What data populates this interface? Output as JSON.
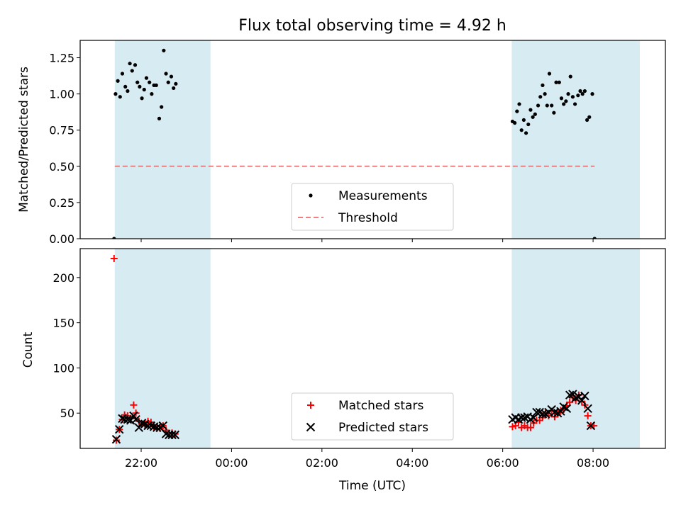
{
  "title": "Flux total observing time = 4.92 h",
  "colors": {
    "shade": "#add8e6",
    "measurement": "#000000",
    "threshold": "#f08080",
    "matched": "#ff0000",
    "predicted": "#000000"
  },
  "chart_data": [
    {
      "type": "scatter",
      "ylabel": "Matched/Predicted stars",
      "ylim": [
        0,
        1.37
      ],
      "yticks": [
        "0.00",
        "0.25",
        "0.50",
        "0.75",
        "1.00",
        "1.25"
      ],
      "xlim_hours": [
        20.65,
        33.6
      ],
      "shaded_intervals": [
        [
          "21:25",
          "23:32"
        ],
        [
          "06:12",
          "09:02"
        ]
      ],
      "series": [
        {
          "name": "Measurements",
          "marker": "dot",
          "points": [
            [
              "21:24",
              0.0
            ],
            [
              "21:26",
              1.0
            ],
            [
              "21:29",
              1.09
            ],
            [
              "21:32",
              0.98
            ],
            [
              "21:35",
              1.14
            ],
            [
              "21:39",
              1.05
            ],
            [
              "21:42",
              1.02
            ],
            [
              "21:45",
              1.21
            ],
            [
              "21:48",
              1.16
            ],
            [
              "21:52",
              1.2
            ],
            [
              "21:55",
              1.08
            ],
            [
              "21:58",
              1.05
            ],
            [
              "22:01",
              0.97
            ],
            [
              "22:04",
              1.03
            ],
            [
              "22:07",
              1.11
            ],
            [
              "22:11",
              1.08
            ],
            [
              "22:14",
              1.0
            ],
            [
              "22:17",
              1.06
            ],
            [
              "22:20",
              1.06
            ],
            [
              "22:24",
              0.83
            ],
            [
              "22:27",
              0.91
            ],
            [
              "22:30",
              1.3
            ],
            [
              "22:33",
              1.14
            ],
            [
              "22:36",
              1.08
            ],
            [
              "22:40",
              1.12
            ],
            [
              "22:43",
              1.04
            ],
            [
              "22:46",
              1.07
            ],
            [
              "06:13",
              0.81
            ],
            [
              "06:16",
              0.8
            ],
            [
              "06:19",
              0.88
            ],
            [
              "06:22",
              0.93
            ],
            [
              "06:25",
              0.75
            ],
            [
              "06:28",
              0.82
            ],
            [
              "06:31",
              0.73
            ],
            [
              "06:34",
              0.79
            ],
            [
              "06:37",
              0.89
            ],
            [
              "06:40",
              0.84
            ],
            [
              "06:43",
              0.86
            ],
            [
              "06:47",
              0.92
            ],
            [
              "06:50",
              0.98
            ],
            [
              "06:53",
              1.06
            ],
            [
              "06:56",
              1.0
            ],
            [
              "06:59",
              0.92
            ],
            [
              "07:02",
              1.14
            ],
            [
              "07:05",
              0.92
            ],
            [
              "07:08",
              0.87
            ],
            [
              "07:11",
              1.08
            ],
            [
              "07:15",
              1.08
            ],
            [
              "07:18",
              0.97
            ],
            [
              "07:21",
              0.93
            ],
            [
              "07:24",
              0.95
            ],
            [
              "07:27",
              1.0
            ],
            [
              "07:30",
              1.12
            ],
            [
              "07:33",
              0.98
            ],
            [
              "07:36",
              0.93
            ],
            [
              "07:40",
              0.99
            ],
            [
              "07:43",
              1.02
            ],
            [
              "07:46",
              1.0
            ],
            [
              "07:49",
              1.02
            ],
            [
              "07:52",
              0.82
            ],
            [
              "07:55",
              0.84
            ],
            [
              "07:59",
              1.0
            ],
            [
              "08:02",
              0.0
            ]
          ]
        },
        {
          "name": "Threshold",
          "marker": "dashed-line",
          "points": [
            [
              "21:25",
              0.5
            ],
            [
              "08:02",
              0.5
            ]
          ]
        }
      ]
    },
    {
      "type": "scatter",
      "xlabel": "Time (UTC)",
      "ylabel": "Count",
      "ylim": [
        11,
        232
      ],
      "yticks": [
        "50",
        "100",
        "150",
        "200"
      ],
      "xticks": [
        "22:00",
        "00:00",
        "02:00",
        "04:00",
        "06:00",
        "08:00"
      ],
      "xlim_hours": [
        20.65,
        33.6
      ],
      "shaded_intervals": [
        [
          "21:25",
          "23:32"
        ],
        [
          "06:12",
          "09:02"
        ]
      ],
      "series": [
        {
          "name": "Matched stars",
          "marker": "plus",
          "points": [
            [
              "21:24",
              221
            ],
            [
              "21:27",
              20
            ],
            [
              "21:31",
              32
            ],
            [
              "21:35",
              43
            ],
            [
              "21:38",
              48
            ],
            [
              "21:42",
              47
            ],
            [
              "21:46",
              44
            ],
            [
              "21:50",
              59
            ],
            [
              "21:53",
              50
            ],
            [
              "21:57",
              41
            ],
            [
              "22:01",
              38
            ],
            [
              "22:05",
              36
            ],
            [
              "22:09",
              41
            ],
            [
              "22:13",
              40
            ],
            [
              "22:17",
              35
            ],
            [
              "22:21",
              33
            ],
            [
              "22:25",
              33
            ],
            [
              "22:29",
              36
            ],
            [
              "22:33",
              31
            ],
            [
              "22:37",
              27
            ],
            [
              "22:41",
              28
            ],
            [
              "22:45",
              27
            ],
            [
              "06:13",
              35
            ],
            [
              "06:17",
              36
            ],
            [
              "06:21",
              40
            ],
            [
              "06:25",
              34
            ],
            [
              "06:29",
              36
            ],
            [
              "06:33",
              34
            ],
            [
              "06:37",
              34
            ],
            [
              "06:41",
              39
            ],
            [
              "06:45",
              42
            ],
            [
              "06:49",
              42
            ],
            [
              "06:53",
              45
            ],
            [
              "06:57",
              50
            ],
            [
              "07:01",
              47
            ],
            [
              "07:05",
              52
            ],
            [
              "07:09",
              46
            ],
            [
              "07:13",
              49
            ],
            [
              "07:17",
              53
            ],
            [
              "07:21",
              54
            ],
            [
              "07:25",
              58
            ],
            [
              "07:29",
              62
            ],
            [
              "07:33",
              67
            ],
            [
              "07:37",
              64
            ],
            [
              "07:41",
              70
            ],
            [
              "07:45",
              63
            ],
            [
              "07:49",
              59
            ],
            [
              "07:53",
              47
            ],
            [
              "07:57",
              36
            ],
            [
              "08:01",
              36
            ]
          ]
        },
        {
          "name": "Predicted stars",
          "marker": "x",
          "points": [
            [
              "21:27",
              21
            ],
            [
              "21:31",
              32
            ],
            [
              "21:35",
              44
            ],
            [
              "21:38",
              43
            ],
            [
              "21:42",
              43
            ],
            [
              "21:46",
              42
            ],
            [
              "21:50",
              47
            ],
            [
              "21:53",
              43
            ],
            [
              "21:57",
              34
            ],
            [
              "22:01",
              39
            ],
            [
              "22:05",
              38
            ],
            [
              "22:09",
              36
            ],
            [
              "22:13",
              36
            ],
            [
              "22:17",
              35
            ],
            [
              "22:21",
              34
            ],
            [
              "22:25",
              34
            ],
            [
              "22:29",
              36
            ],
            [
              "22:33",
              27
            ],
            [
              "22:37",
              26
            ],
            [
              "22:41",
              26
            ],
            [
              "22:45",
              26
            ],
            [
              "06:13",
              43
            ],
            [
              "06:17",
              45
            ],
            [
              "06:21",
              43
            ],
            [
              "06:25",
              45
            ],
            [
              "06:29",
              45
            ],
            [
              "06:33",
              46
            ],
            [
              "06:37",
              43
            ],
            [
              "06:41",
              45
            ],
            [
              "06:45",
              51
            ],
            [
              "06:49",
              51
            ],
            [
              "06:53",
              49
            ],
            [
              "06:57",
              49
            ],
            [
              "07:01",
              51
            ],
            [
              "07:05",
              54
            ],
            [
              "07:09",
              51
            ],
            [
              "07:13",
              50
            ],
            [
              "07:17",
              52
            ],
            [
              "07:21",
              57
            ],
            [
              "07:25",
              55
            ],
            [
              "07:29",
              70
            ],
            [
              "07:33",
              71
            ],
            [
              "07:37",
              67
            ],
            [
              "07:41",
              68
            ],
            [
              "07:45",
              64
            ],
            [
              "07:49",
              69
            ],
            [
              "07:53",
              55
            ],
            [
              "07:57",
              36
            ]
          ]
        }
      ]
    }
  ]
}
